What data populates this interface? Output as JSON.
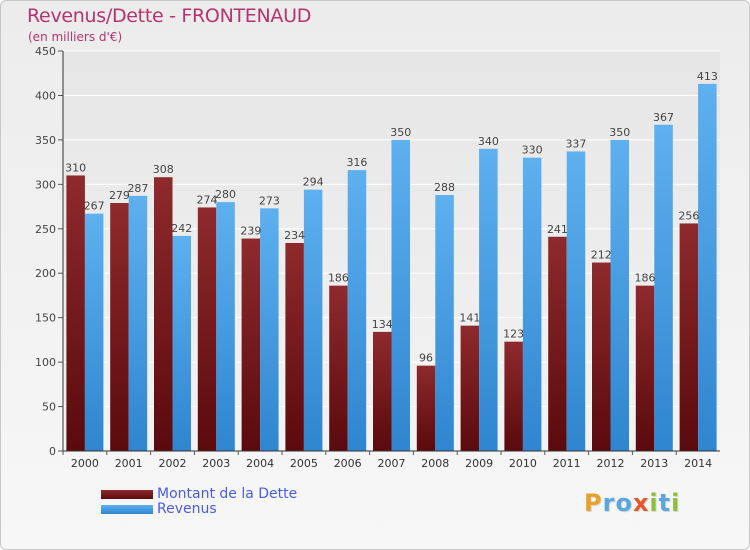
{
  "header": {
    "title": "Revenus/Dette - FRONTENAUD",
    "subtitle": "(en milliers d'€)"
  },
  "chart_data": {
    "type": "bar",
    "categories": [
      "2000",
      "2001",
      "2002",
      "2003",
      "2004",
      "2005",
      "2006",
      "2007",
      "2008",
      "2009",
      "2010",
      "2011",
      "2012",
      "2013",
      "2014"
    ],
    "series": [
      {
        "name": "Montant de la Dette",
        "color": "#7a1f22",
        "values": [
          310,
          279,
          308,
          274,
          239,
          234,
          186,
          134,
          96,
          141,
          123,
          241,
          212,
          186,
          256
        ]
      },
      {
        "name": "Revenus",
        "color": "#3e95dd",
        "values": [
          267,
          287,
          242,
          280,
          273,
          294,
          316,
          350,
          288,
          340,
          330,
          337,
          350,
          367,
          413
        ]
      }
    ],
    "ylim": [
      0,
      450
    ],
    "yticks": [
      0,
      50,
      100,
      150,
      200,
      250,
      300,
      350,
      400,
      450
    ],
    "grid": true,
    "legend_position": "bottom-left"
  },
  "logo": {
    "letters": [
      {
        "char": "P",
        "color": "#e8a12a"
      },
      {
        "char": "r",
        "color": "#5aa6df"
      },
      {
        "char": "o",
        "color": "#5aa6df"
      },
      {
        "char": "x",
        "color": "#e8572a"
      },
      {
        "char": "i",
        "color": "#8fbf3a"
      },
      {
        "char": "t",
        "color": "#5aa6df"
      },
      {
        "char": "i",
        "color": "#8fbf3a"
      }
    ]
  }
}
